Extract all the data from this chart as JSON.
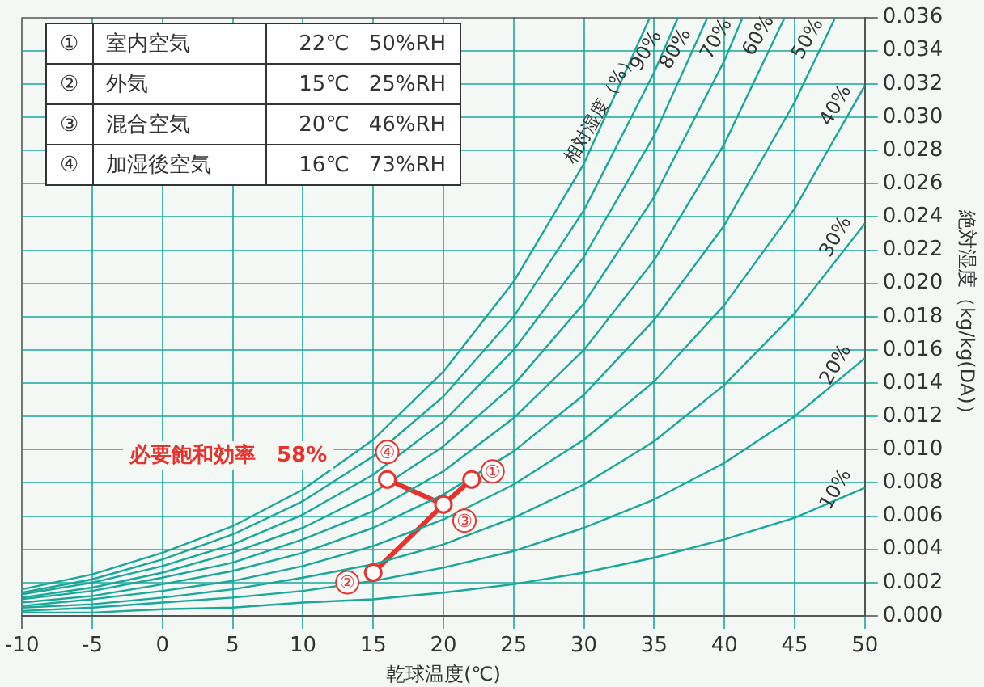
{
  "chart_data": {
    "type": "line",
    "xlabel": "乾球温度(℃)",
    "ylabel": "絶対湿度（kg/kg(DA)）",
    "xlim": [
      -10,
      50
    ],
    "xticks": [
      -10,
      -5,
      0,
      5,
      10,
      15,
      20,
      25,
      30,
      35,
      40,
      45,
      50
    ],
    "ylim": [
      0,
      0.036
    ],
    "yticks": [
      {
        "value": 0,
        "label": "0.000"
      },
      0.002,
      0.004,
      0.006,
      0.008,
      {
        "value": 0.01,
        "label": "0.010"
      },
      0.012,
      0.014,
      0.016,
      0.018,
      {
        "value": 0.02,
        "label": "0.020"
      },
      0.022,
      0.024,
      0.026,
      0.028,
      {
        "value": 0.03,
        "label": "0.030"
      },
      0.032,
      0.034,
      0.036
    ],
    "grid": true,
    "series": [
      {
        "type": "line",
        "color": "#1aa79a",
        "x": [
          -10,
          -5,
          0,
          5,
          10,
          15,
          20,
          25,
          30,
          34.7
        ],
        "values": [
          0.0016,
          0.0025,
          0.0038,
          0.0054,
          0.0076,
          0.0106,
          0.0147,
          0.0201,
          0.0272,
          0.036
        ]
      },
      {
        "type": "line",
        "color": "#1aa79a",
        "x": [
          -10,
          -5,
          0,
          5,
          10,
          15,
          20,
          25,
          30,
          35,
          36.7
        ],
        "values": [
          0.0014,
          0.0022,
          0.0034,
          0.0049,
          0.0069,
          0.0096,
          0.0132,
          0.018,
          0.0244,
          0.0327,
          0.036
        ]
      },
      {
        "type": "line",
        "color": "#1aa79a",
        "x": [
          -10,
          -5,
          0,
          5,
          10,
          15,
          20,
          25,
          30,
          35,
          38.8
        ],
        "values": [
          0.0013,
          0.002,
          0.003,
          0.0043,
          0.0061,
          0.0085,
          0.0117,
          0.016,
          0.0216,
          0.0289,
          0.036
        ]
      },
      {
        "type": "line",
        "color": "#1aa79a",
        "x": [
          -10,
          -5,
          0,
          5,
          10,
          15,
          20,
          25,
          30,
          35,
          40,
          41.3
        ],
        "values": [
          0.0011,
          0.0017,
          0.0026,
          0.0038,
          0.0053,
          0.0074,
          0.0102,
          0.0139,
          0.0188,
          0.0252,
          0.0334,
          0.036
        ]
      },
      {
        "type": "line",
        "color": "#1aa79a",
        "x": [
          -10,
          -5,
          0,
          5,
          10,
          15,
          20,
          25,
          30,
          35,
          40,
          44.3
        ],
        "values": [
          0.001,
          0.0015,
          0.0023,
          0.0032,
          0.0046,
          0.0063,
          0.0087,
          0.0119,
          0.016,
          0.0214,
          0.0284,
          0.036
        ]
      },
      {
        "type": "line",
        "color": "#1aa79a",
        "x": [
          -10,
          -5,
          0,
          5,
          10,
          15,
          20,
          25,
          30,
          35,
          40,
          45,
          47.9
        ],
        "values": [
          0.0008,
          0.0012,
          0.0019,
          0.0027,
          0.0038,
          0.0053,
          0.0073,
          0.0099,
          0.0133,
          0.0178,
          0.0235,
          0.0309,
          0.036
        ]
      },
      {
        "type": "line",
        "color": "#1aa79a",
        "x": [
          -10,
          -5,
          0,
          5,
          10,
          15,
          20,
          25,
          30,
          35,
          40,
          45,
          50
        ],
        "values": [
          0.0006,
          0.001,
          0.0015,
          0.0021,
          0.003,
          0.0042,
          0.0058,
          0.0079,
          0.0106,
          0.0141,
          0.0187,
          0.0245,
          0.0319
        ]
      },
      {
        "type": "line",
        "color": "#1aa79a",
        "x": [
          -10,
          -5,
          0,
          5,
          10,
          15,
          20,
          25,
          30,
          35,
          40,
          45,
          50
        ],
        "values": [
          0.0005,
          0.0007,
          0.0011,
          0.0016,
          0.0023,
          0.0031,
          0.0043,
          0.0059,
          0.0079,
          0.0105,
          0.0139,
          0.0182,
          0.0236
        ]
      },
      {
        "type": "line",
        "color": "#1aa79a",
        "x": [
          -10,
          -5,
          0,
          5,
          10,
          15,
          20,
          25,
          30,
          35,
          40,
          45,
          50
        ],
        "values": [
          0.0003,
          0.0005,
          0.0008,
          0.0011,
          0.0015,
          0.0021,
          0.0029,
          0.0039,
          0.0053,
          0.007,
          0.0092,
          0.012,
          0.0155
        ]
      },
      {
        "type": "line",
        "color": "#1aa79a",
        "x": [
          -10,
          -5,
          0,
          5,
          10,
          15,
          20,
          25,
          30,
          35,
          40,
          45,
          50
        ],
        "values": [
          0.0002,
          0.0002,
          0.0004,
          0.0005,
          0.0008,
          0.001,
          0.0014,
          0.0019,
          0.0026,
          0.0035,
          0.0046,
          0.0059,
          0.0077
        ]
      },
      {
        "type": "line",
        "color": "#e8322d",
        "x": [
          15,
          20,
          22
        ],
        "values": [
          0.0026,
          0.0067,
          0.0082
        ]
      },
      {
        "type": "line",
        "color": "#e8322d",
        "x": [
          16,
          20
        ],
        "values": [
          0.0082,
          0.0067
        ]
      },
      {
        "type": "scatter",
        "color": "#e8322d",
        "marker": "circle",
        "x": [
          22,
          15,
          20,
          16
        ],
        "values": [
          0.0082,
          0.0026,
          0.0067,
          0.0082
        ]
      }
    ],
    "annotations": [
      "①",
      "室内空気",
      "22℃",
      "50%RH",
      "②",
      "外気",
      "15℃",
      "25%RH",
      "③",
      "混合空気",
      "20℃",
      "46%RH",
      "④",
      "加湿後空気",
      "16℃",
      "73%RH",
      "必要飽和効率　58%",
      {
        "text": "①",
        "x": 22,
        "y": 0.0082
      },
      {
        "text": "②",
        "x": 15,
        "y": 0.0026
      },
      {
        "text": "③",
        "x": 20,
        "y": 0.0067
      },
      {
        "text": "④",
        "x": 16,
        "y": 0.0082
      },
      "相対湿度（%）",
      {
        "text": "90%",
        "x": 35.5,
        "y": 0.0337
      },
      {
        "text": "80%",
        "x": 37.6,
        "y": 0.0338
      },
      {
        "text": "70%",
        "x": 40.5,
        "y": 0.0344
      },
      {
        "text": "60%",
        "x": 43.5,
        "y": 0.0346
      },
      {
        "text": "50%",
        "x": 47,
        "y": 0.0344
      },
      {
        "text": "40%",
        "x": 49,
        "y": 0.0304
      },
      {
        "text": "30%",
        "x": 49,
        "y": 0.0225
      },
      {
        "text": "20%",
        "x": 49,
        "y": 0.0148
      },
      {
        "text": "10%",
        "x": 49,
        "y": 0.0073
      }
    ]
  }
}
